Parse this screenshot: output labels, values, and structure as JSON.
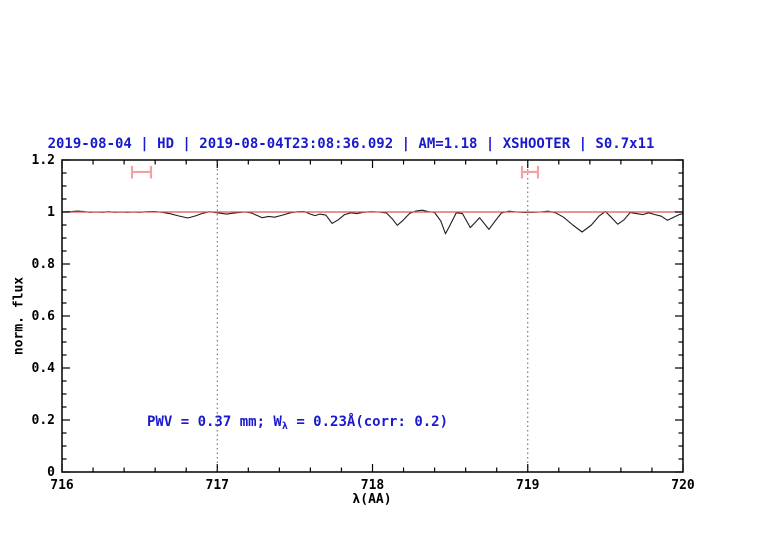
{
  "chart_data": {
    "type": "line",
    "title": "2019-08-04 | HD | 2019-08-04T23:08:36.092 | AM=1.18 | XSHOOTER | S0.7x11",
    "xlabel": "λ(AA)",
    "ylabel": "norm. flux",
    "xlim": [
      716,
      720
    ],
    "ylim": [
      0,
      1.2
    ],
    "grid": "off",
    "legend": "none",
    "x_ticks": [
      {
        "value": 716,
        "label": "716"
      },
      {
        "value": 717,
        "label": "717"
      },
      {
        "value": 718,
        "label": "718"
      },
      {
        "value": 719,
        "label": "719"
      },
      {
        "value": 720,
        "label": "720"
      }
    ],
    "y_ticks": [
      {
        "value": 0,
        "label": "0"
      },
      {
        "value": 0.2,
        "label": "0.2"
      },
      {
        "value": 0.4,
        "label": "0.4"
      },
      {
        "value": 0.6,
        "label": "0.6"
      },
      {
        "value": 0.8,
        "label": "0.8"
      },
      {
        "value": 1,
        "label": "1"
      },
      {
        "value": 1.2,
        "label": "1.2"
      }
    ],
    "x_minor_step": 0.2,
    "y_minor_step": 0.05,
    "vlines": [
      717.0,
      719.0
    ],
    "annotation": {
      "prefix": "PWV = 0.37 mm; W",
      "sub": "λ",
      "suffix": " = 0.23Å(corr: 0.2)"
    },
    "ew_markers": [
      {
        "x_from": 716.451,
        "x_to": 716.573,
        "y": 1.154
      },
      {
        "x_from": 718.963,
        "x_to": 719.066,
        "y": 1.154
      }
    ],
    "colors": {
      "text_blue": "#1a1acd",
      "model_red": "#dd5555",
      "marker_red": "#f2a2a2",
      "spectrum": "#1f1f1f",
      "axis": "#000000",
      "vline": "#606060"
    },
    "series": [
      {
        "name": "observed spectrum",
        "color_key": "spectrum",
        "points": [
          [
            716.0,
            1.0
          ],
          [
            716.05,
            1.001
          ],
          [
            716.1,
            1.004
          ],
          [
            716.14,
            1.002
          ],
          [
            716.18,
            0.999
          ],
          [
            716.22,
            1.0
          ],
          [
            716.26,
            0.999
          ],
          [
            716.3,
            1.001
          ],
          [
            716.34,
            0.999
          ],
          [
            716.38,
            1.0
          ],
          [
            716.42,
            0.999
          ],
          [
            716.46,
            1.0
          ],
          [
            716.5,
            0.999
          ],
          [
            716.55,
            1.001
          ],
          [
            716.6,
            1.002
          ],
          [
            716.65,
            0.998
          ],
          [
            716.7,
            0.993
          ],
          [
            716.75,
            0.985
          ],
          [
            716.81,
            0.977
          ],
          [
            716.86,
            0.985
          ],
          [
            716.9,
            0.994
          ],
          [
            716.95,
            1.001
          ],
          [
            717.0,
            0.997
          ],
          [
            717.06,
            0.992
          ],
          [
            717.12,
            0.997
          ],
          [
            717.18,
            1.0
          ],
          [
            717.22,
            0.996
          ],
          [
            717.29,
            0.978
          ],
          [
            717.33,
            0.983
          ],
          [
            717.37,
            0.98
          ],
          [
            717.42,
            0.988
          ],
          [
            717.47,
            0.997
          ],
          [
            717.52,
            1.001
          ],
          [
            717.56,
            1.002
          ],
          [
            717.6,
            0.992
          ],
          [
            717.63,
            0.986
          ],
          [
            717.66,
            0.992
          ],
          [
            717.7,
            0.988
          ],
          [
            717.74,
            0.956
          ],
          [
            717.78,
            0.97
          ],
          [
            717.82,
            0.99
          ],
          [
            717.86,
            0.997
          ],
          [
            717.9,
            0.994
          ],
          [
            717.94,
            0.999
          ],
          [
            717.99,
            1.001
          ],
          [
            718.04,
            1.0
          ],
          [
            718.09,
            0.996
          ],
          [
            718.13,
            0.972
          ],
          [
            718.16,
            0.949
          ],
          [
            718.2,
            0.97
          ],
          [
            718.24,
            0.995
          ],
          [
            718.28,
            1.004
          ],
          [
            718.32,
            1.007
          ],
          [
            718.36,
            1.001
          ],
          [
            718.4,
            0.998
          ],
          [
            718.44,
            0.965
          ],
          [
            718.47,
            0.916
          ],
          [
            718.5,
            0.95
          ],
          [
            718.54,
            0.997
          ],
          [
            718.58,
            0.994
          ],
          [
            718.63,
            0.94
          ],
          [
            718.69,
            0.978
          ],
          [
            718.75,
            0.933
          ],
          [
            718.79,
            0.965
          ],
          [
            718.83,
            0.996
          ],
          [
            718.88,
            1.003
          ],
          [
            718.93,
            1.0
          ],
          [
            718.98,
            0.998
          ],
          [
            719.03,
            0.999
          ],
          [
            719.08,
            1.0
          ],
          [
            719.13,
            1.003
          ],
          [
            719.18,
            0.997
          ],
          [
            719.23,
            0.98
          ],
          [
            719.29,
            0.95
          ],
          [
            719.35,
            0.923
          ],
          [
            719.41,
            0.95
          ],
          [
            719.46,
            0.985
          ],
          [
            719.5,
            1.002
          ],
          [
            719.54,
            0.978
          ],
          [
            719.58,
            0.953
          ],
          [
            719.62,
            0.97
          ],
          [
            719.66,
            0.998
          ],
          [
            719.7,
            0.994
          ],
          [
            719.74,
            0.99
          ],
          [
            719.78,
            0.997
          ],
          [
            719.82,
            0.99
          ],
          [
            719.86,
            0.984
          ],
          [
            719.9,
            0.968
          ],
          [
            719.94,
            0.98
          ],
          [
            719.98,
            0.991
          ],
          [
            720.0,
            0.993
          ]
        ]
      },
      {
        "name": "telluric model",
        "color_key": "model_red",
        "points": [
          [
            716.0,
            1.0
          ],
          [
            720.0,
            1.0
          ]
        ]
      }
    ]
  }
}
